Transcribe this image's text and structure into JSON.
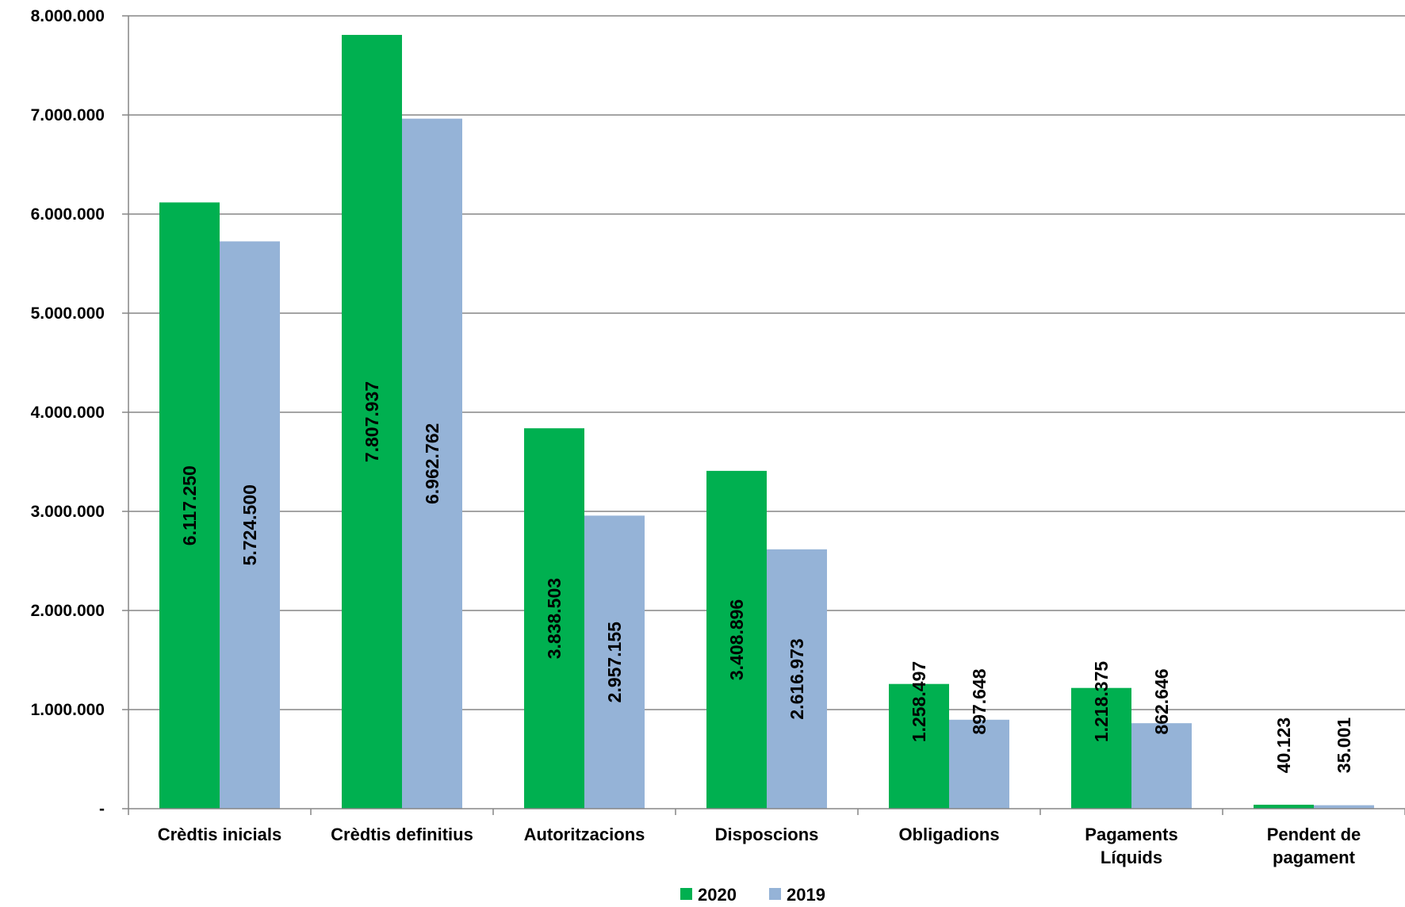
{
  "chart_data": {
    "type": "bar",
    "title": "",
    "xlabel": "",
    "ylabel": "",
    "categories": [
      [
        "Crèdtis inicials"
      ],
      [
        "Crèdtis definitius"
      ],
      [
        "Autoritzacions"
      ],
      [
        "Disposcions"
      ],
      [
        "Obligadions"
      ],
      [
        "Pagaments",
        "Líquids"
      ],
      [
        "Pendent de",
        "pagament"
      ]
    ],
    "series": [
      {
        "name": "2020",
        "color": "#00B050",
        "values": [
          6117250,
          7807937,
          3838503,
          3408896,
          1258497,
          1218375,
          40123
        ],
        "labels": [
          "6.117.250",
          "7.807.937",
          "3.838.503",
          "3.408.896",
          "1.258.497",
          "1.218.375",
          "40.123"
        ]
      },
      {
        "name": "2019",
        "color": "#95B3D7",
        "values": [
          5724500,
          6962762,
          2957155,
          2616973,
          897648,
          862646,
          35001
        ],
        "labels": [
          "5.724.500",
          "6.962.762",
          "2.957.155",
          "2.616.973",
          "897.648",
          "862.646",
          "35.001"
        ]
      }
    ],
    "ylim": [
      0,
      8000000
    ],
    "yticks": [
      0,
      1000000,
      2000000,
      3000000,
      4000000,
      5000000,
      6000000,
      7000000,
      8000000
    ],
    "ytick_labels": [
      "-",
      "1.000.000",
      "2.000.000",
      "3.000.000",
      "4.000.000",
      "5.000.000",
      "6.000.000",
      "7.000.000",
      "8.000.000"
    ],
    "grid": true,
    "legend_position": "bottom-center"
  }
}
